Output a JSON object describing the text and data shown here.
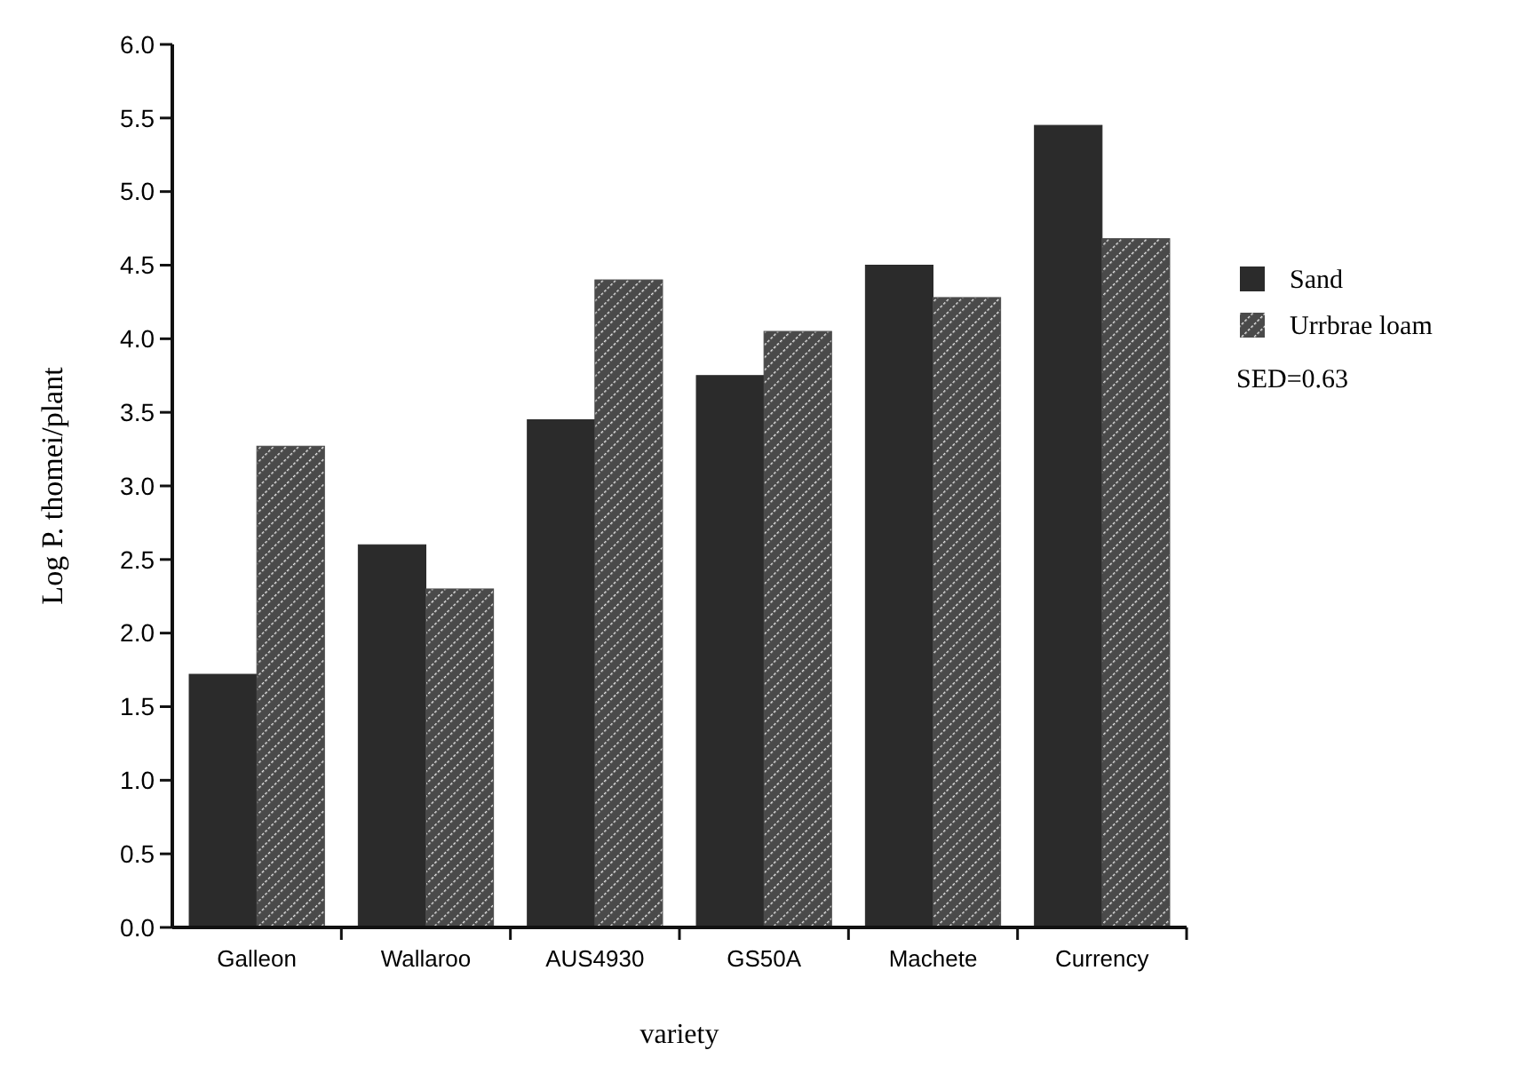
{
  "chart_data": {
    "type": "bar",
    "xlabel": "variety",
    "ylabel": "Log P. thomei/plant",
    "categories": [
      "Galleon",
      "Wallaroo",
      "AUS4930",
      "GS50A",
      "Machete",
      "Currency"
    ],
    "series": [
      {
        "name": "Sand",
        "color": "#2b2b2b",
        "values": [
          1.72,
          2.6,
          3.45,
          3.75,
          4.5,
          5.45
        ]
      },
      {
        "name": "Urrbrae loam",
        "color": "#4a4a4a",
        "values": [
          3.27,
          2.3,
          4.4,
          4.05,
          4.28,
          4.68
        ]
      }
    ],
    "ylim": [
      0,
      6
    ],
    "yticks": [
      {
        "value": 0,
        "label": "0.0"
      },
      {
        "value": 0.5,
        "label": "0.5"
      },
      {
        "value": 1,
        "label": "1.0"
      },
      {
        "value": 1.5,
        "label": "1.5"
      },
      {
        "value": 2,
        "label": "2.0"
      },
      {
        "value": 2.5,
        "label": "2.5"
      },
      {
        "value": 3,
        "label": "3.0"
      },
      {
        "value": 3.5,
        "label": "3.5"
      },
      {
        "value": 4,
        "label": "4.0"
      },
      {
        "value": 4.5,
        "label": "4.5"
      },
      {
        "value": 5,
        "label": "5.0"
      },
      {
        "value": 5.5,
        "label": "5.5"
      },
      {
        "value": 6,
        "label": "6.0"
      }
    ],
    "legend": "right",
    "annotations": [
      "SED=0.63"
    ]
  }
}
